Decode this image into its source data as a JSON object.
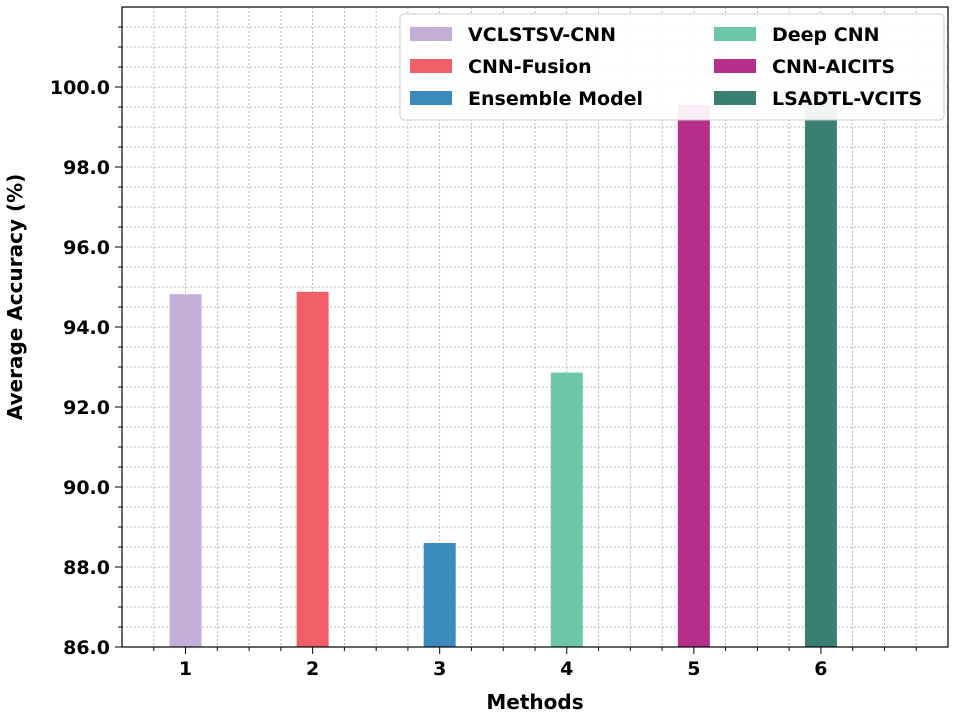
{
  "chart_data": {
    "type": "bar",
    "title": "",
    "xlabel": "Methods",
    "ylabel": "Average Accuracy (%)",
    "categories": [
      "1",
      "2",
      "3",
      "4",
      "5",
      "6"
    ],
    "ylim": [
      86.0,
      102.0
    ],
    "yticks": [
      "86.0",
      "88.0",
      "90.0",
      "92.0",
      "94.0",
      "96.0",
      "98.0",
      "100.0"
    ],
    "grid": true,
    "legend_position": "top-right",
    "series": [
      {
        "name": "VCLSTSV-CNN",
        "category": "1",
        "value": 94.82,
        "color": "#c2aed6"
      },
      {
        "name": "CNN-Fusion",
        "category": "2",
        "value": 94.88,
        "color": "#ef5f65"
      },
      {
        "name": "Ensemble Model",
        "category": "3",
        "value": 88.6,
        "color": "#3a8bbb"
      },
      {
        "name": "Deep CNN",
        "category": "4",
        "value": 92.86,
        "color": "#6cc7a8"
      },
      {
        "name": "CNN-AICITS",
        "category": "5",
        "value": 99.55,
        "color": "#b52f8a"
      },
      {
        "name": "LSADTL-VCITS",
        "category": "6",
        "value": 99.85,
        "color": "#3a7f72"
      }
    ]
  }
}
